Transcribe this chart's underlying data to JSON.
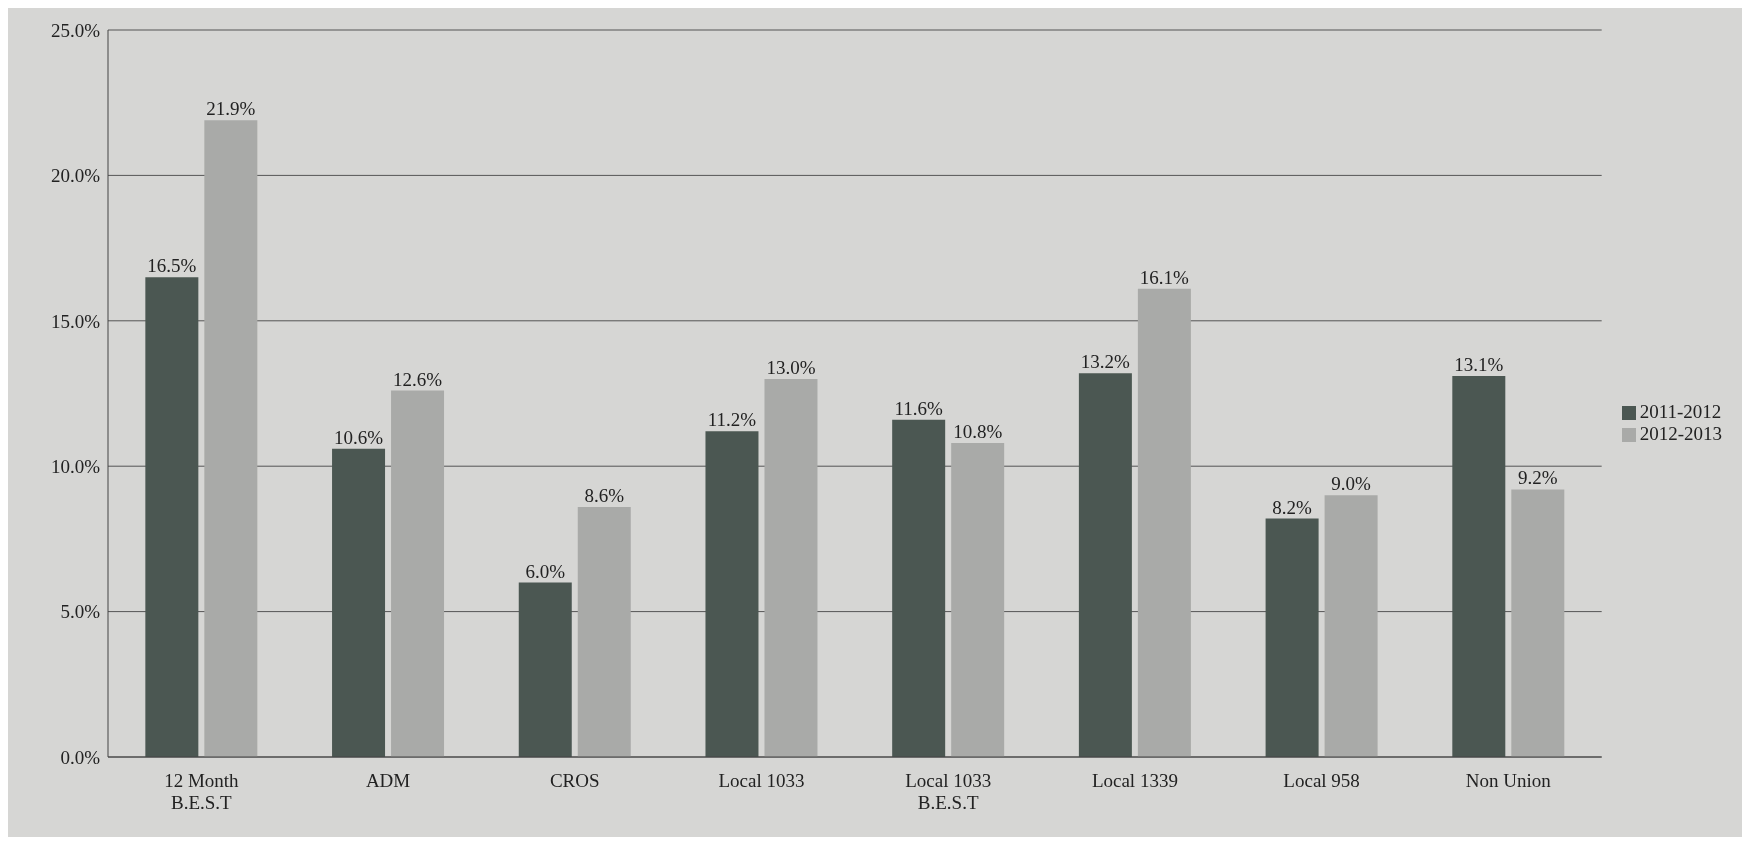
{
  "chart_data": {
    "type": "bar",
    "categories": [
      "12 Month\nB.E.S.T",
      "ADM",
      "CROS",
      "Local 1033",
      "Local 1033\nB.E.S.T",
      "Local 1339",
      "Local 958",
      "Non Union"
    ],
    "series": [
      {
        "name": "2011-2012",
        "color": "#4b5752",
        "values": [
          16.5,
          10.6,
          6.0,
          11.2,
          11.6,
          13.2,
          8.2,
          13.1
        ],
        "value_labels": [
          "16.5%",
          "10.6%",
          "6.0%",
          "11.2%",
          "11.6%",
          "13.2%",
          "8.2%",
          "13.1%"
        ]
      },
      {
        "name": "2012-2013",
        "color": "#a9aaa8",
        "values": [
          21.9,
          12.6,
          8.6,
          13.0,
          10.8,
          16.1,
          9.0,
          9.2
        ],
        "value_labels": [
          "21.9%",
          "12.6%",
          "8.6%",
          "13.0%",
          "10.8%",
          "16.1%",
          "9.0%",
          "9.2%"
        ]
      }
    ],
    "ylim": [
      0,
      25
    ],
    "yticks": [
      {
        "value": 0,
        "label": "0.0%"
      },
      {
        "value": 5,
        "label": "5.0%"
      },
      {
        "value": 10,
        "label": "10.0%"
      },
      {
        "value": 15,
        "label": "15.0%"
      },
      {
        "value": 20,
        "label": "20.0%"
      },
      {
        "value": 25,
        "label": "25.0%"
      }
    ],
    "grid": "y",
    "legend": "right"
  }
}
